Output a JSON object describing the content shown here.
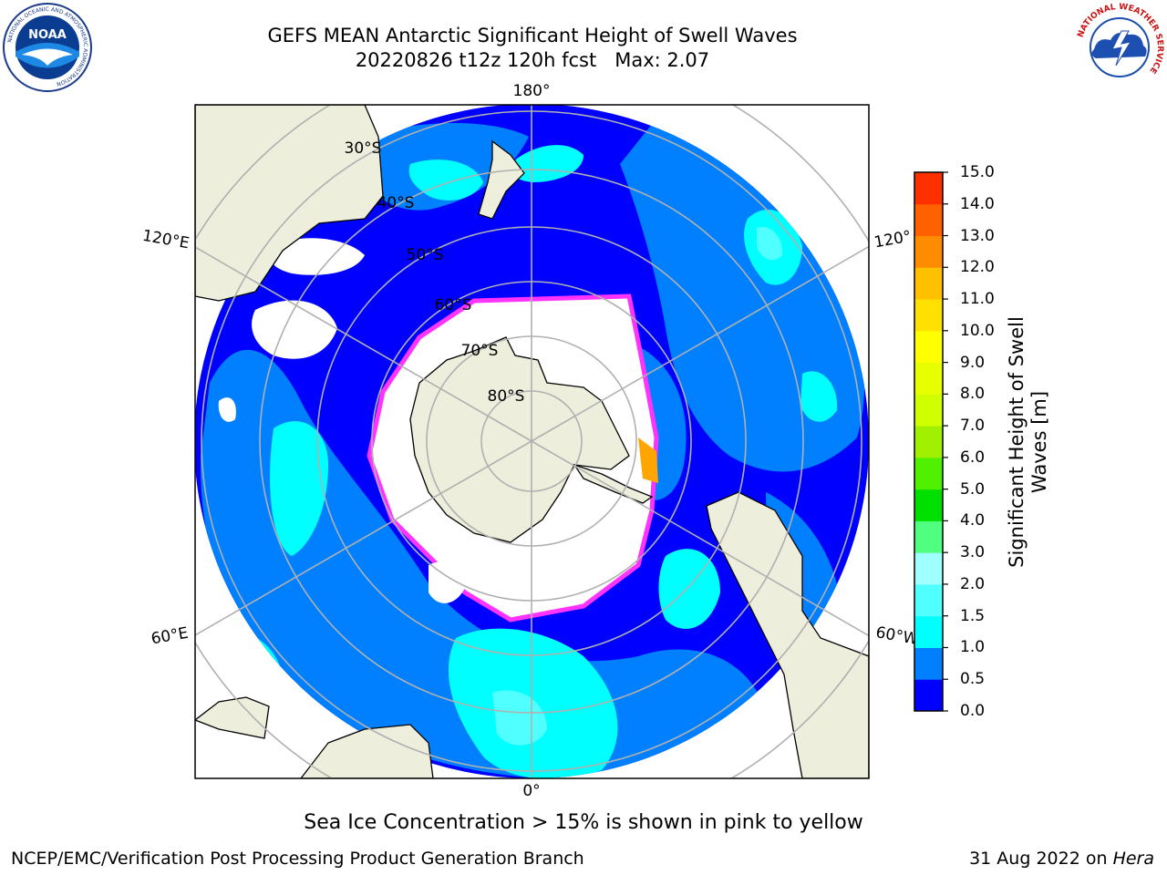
{
  "header": {
    "title_line1": "GEFS MEAN Antarctic Significant Height of Swell Waves",
    "title_line2": "20220826 t12z 120h fcst   Max: 2.07"
  },
  "logos": {
    "left": {
      "icon": "noaa-logo",
      "text": "NOAA",
      "ring_text": "NATIONAL OCEANIC AND ATMOSPHERIC ADMINISTRATION",
      "bottom_text": "U.S. DEPARTMENT OF COMMERCE"
    },
    "right": {
      "icon": "nws-logo",
      "ring_text": "NATIONAL WEATHER SERVICE"
    }
  },
  "map": {
    "projection": "south polar stereographic",
    "longitude_labels": [
      "180°",
      "120°E",
      "120°",
      "60°E",
      "60°W",
      "0°"
    ],
    "latitude_labels": [
      "30°S",
      "40°S",
      "50°S",
      "60°S",
      "70°S",
      "80°S"
    ],
    "land_color": "#eeeedc",
    "sea_ice_color": "#ffffff",
    "sea_ice_edge_colors": [
      "#ff33ff",
      "#ffa500",
      "#ffff00"
    ],
    "grid_color": "#b0b0b0"
  },
  "colorbar": {
    "label": "Significant Height of Swell Waves [m]",
    "ticks": [
      "0.0",
      "0.5",
      "1.0",
      "1.5",
      "2.0",
      "3.0",
      "4.0",
      "5.0",
      "6.0",
      "7.0",
      "8.0",
      "9.0",
      "10.0",
      "11.0",
      "12.0",
      "13.0",
      "14.0",
      "15.0"
    ],
    "colors": [
      "#0000ff",
      "#0080ff",
      "#00ffff",
      "#50ffff",
      "#a0ffff",
      "#50ff80",
      "#00e000",
      "#50f000",
      "#a0f000",
      "#d0ff00",
      "#e8ff00",
      "#ffff00",
      "#ffe000",
      "#ffc000",
      "#ff8c00",
      "#ff6000",
      "#ff3000",
      "#ff0000"
    ]
  },
  "footer": {
    "caption": "Sea Ice Concentration > 15% is shown in pink to yellow",
    "credit": "NCEP/EMC/Verification Post Processing Product Generation Branch",
    "date": "31 Aug 2022 on",
    "host": "Hera"
  }
}
